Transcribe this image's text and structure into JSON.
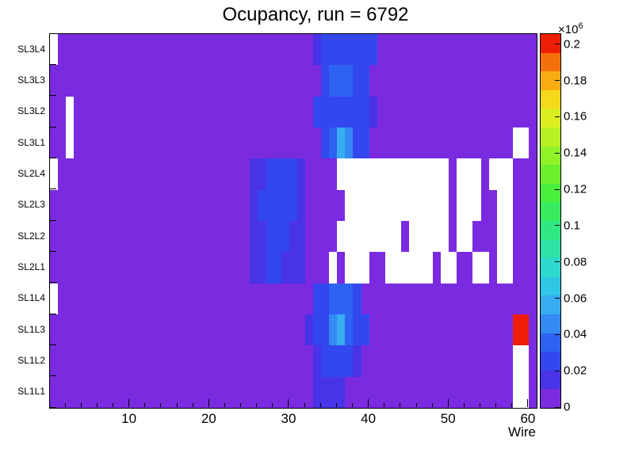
{
  "colorbar": {
    "exponent_base": "×10",
    "exponent_power": "6"
  },
  "chart_data": {
    "type": "heatmap",
    "title": "Ocupancy, run = 6792",
    "xlabel": "Wire",
    "x_range": [
      0,
      61
    ],
    "x_minor_tick_step": 2,
    "x_ticks": [
      {
        "value": 10,
        "label": "10"
      },
      {
        "value": 20,
        "label": "20"
      },
      {
        "value": 30,
        "label": "30"
      },
      {
        "value": 40,
        "label": "40"
      },
      {
        "value": 50,
        "label": "50"
      },
      {
        "value": 60,
        "label": "60"
      }
    ],
    "rows_top_to_bottom": [
      "SL3L4",
      "SL3L3",
      "SL3L2",
      "SL3L1",
      "SL2L4",
      "SL2L3",
      "SL2L2",
      "SL2L1",
      "SL1L4",
      "SL1L3",
      "SL1L2",
      "SL1L1"
    ],
    "values_scale": "×10^6",
    "zmax": 0.206,
    "z_ticks": [
      {
        "value": 0,
        "label": "0"
      },
      {
        "value": 0.02,
        "label": "0.02"
      },
      {
        "value": 0.04,
        "label": "0.04"
      },
      {
        "value": 0.06,
        "label": "0.06"
      },
      {
        "value": 0.08,
        "label": "0.08"
      },
      {
        "value": 0.1,
        "label": "0.1"
      },
      {
        "value": 0.12,
        "label": "0.12"
      },
      {
        "value": 0.14,
        "label": "0.14"
      },
      {
        "value": 0.16,
        "label": "0.16"
      },
      {
        "value": 0.18,
        "label": "0.18"
      },
      {
        "value": 0.2,
        "label": "0.2"
      }
    ],
    "palette": [
      "#7a2be0",
      "#4833e6",
      "#3347ee",
      "#2e62f2",
      "#3489f2",
      "#38acf0",
      "#30c6e6",
      "#2dd8cc",
      "#2ee2a8",
      "#30e882",
      "#38ec5e",
      "#4aee3c",
      "#6cf02e",
      "#92f228",
      "#b8f024",
      "#dcee20",
      "#f4da1a",
      "#f8ac12",
      "#f4700c",
      "#ee1e06"
    ],
    "empty_color": "#ffffff",
    "grid_encoding": "run-length pairs [occupancy_in_1e6_counts_or_null_for_empty, n_wire_bins] per row, 61 wire bins per row, rows ordered top to bottom",
    "grid_rle": [
      [
        [
          null,
          1
        ],
        [
          0.004,
          32
        ],
        [
          0.018,
          1
        ],
        [
          0.025,
          7
        ],
        [
          0.004,
          20
        ]
      ],
      [
        [
          0.004,
          34
        ],
        [
          0.025,
          1
        ],
        [
          0.032,
          3
        ],
        [
          0.025,
          2
        ],
        [
          0.004,
          21
        ]
      ],
      [
        [
          0.004,
          2
        ],
        [
          null,
          1
        ],
        [
          0.004,
          30
        ],
        [
          0.025,
          7
        ],
        [
          0.018,
          1
        ],
        [
          0.004,
          20
        ]
      ],
      [
        [
          0.004,
          2
        ],
        [
          null,
          1
        ],
        [
          0.004,
          31
        ],
        [
          0.025,
          1
        ],
        [
          0.032,
          1
        ],
        [
          0.055,
          1
        ],
        [
          0.045,
          1
        ],
        [
          0.025,
          2
        ],
        [
          0.004,
          18
        ],
        [
          null,
          2
        ],
        [
          0.004,
          1
        ]
      ],
      [
        [
          null,
          1
        ],
        [
          0.004,
          24
        ],
        [
          0.018,
          2
        ],
        [
          0.025,
          4
        ],
        [
          0.018,
          1
        ],
        [
          0.004,
          4
        ],
        [
          null,
          14
        ],
        [
          0.004,
          1
        ],
        [
          null,
          3
        ],
        [
          0.004,
          1
        ],
        [
          null,
          3
        ],
        [
          0.004,
          3
        ]
      ],
      [
        [
          0.004,
          25
        ],
        [
          0.018,
          1
        ],
        [
          0.025,
          5
        ],
        [
          0.018,
          1
        ],
        [
          0.004,
          5
        ],
        [
          null,
          13
        ],
        [
          0.004,
          1
        ],
        [
          null,
          3
        ],
        [
          0.004,
          2
        ],
        [
          null,
          2
        ],
        [
          0.004,
          3
        ]
      ],
      [
        [
          0.004,
          25
        ],
        [
          0.018,
          2
        ],
        [
          0.025,
          3
        ],
        [
          0.018,
          2
        ],
        [
          0.004,
          4
        ],
        [
          null,
          8
        ],
        [
          0.004,
          1
        ],
        [
          null,
          5
        ],
        [
          0.004,
          1
        ],
        [
          null,
          2
        ],
        [
          0.004,
          3
        ],
        [
          null,
          2
        ],
        [
          0.004,
          3
        ]
      ],
      [
        [
          0.004,
          25
        ],
        [
          0.018,
          2
        ],
        [
          0.025,
          2
        ],
        [
          0.018,
          3
        ],
        [
          0.004,
          3
        ],
        [
          null,
          1
        ],
        [
          0.004,
          1
        ],
        [
          null,
          3
        ],
        [
          0.004,
          2
        ],
        [
          null,
          6
        ],
        [
          0.004,
          1
        ],
        [
          null,
          2
        ],
        [
          0.004,
          2
        ],
        [
          null,
          2
        ],
        [
          0.004,
          1
        ],
        [
          null,
          2
        ],
        [
          0.004,
          3
        ]
      ],
      [
        [
          null,
          1
        ],
        [
          0.004,
          32
        ],
        [
          0.025,
          2
        ],
        [
          0.032,
          3
        ],
        [
          0.025,
          1
        ],
        [
          0.004,
          22
        ]
      ],
      [
        [
          0.004,
          32
        ],
        [
          0.018,
          1
        ],
        [
          0.025,
          2
        ],
        [
          0.045,
          1
        ],
        [
          0.055,
          1
        ],
        [
          0.032,
          1
        ],
        [
          0.025,
          2
        ],
        [
          0.004,
          18
        ],
        [
          0.2,
          2
        ],
        [
          0.004,
          1
        ]
      ],
      [
        [
          0.004,
          33
        ],
        [
          0.018,
          1
        ],
        [
          0.025,
          4
        ],
        [
          0.018,
          1
        ],
        [
          0.004,
          19
        ],
        [
          null,
          2
        ],
        [
          0.004,
          1
        ]
      ],
      [
        [
          0.004,
          33
        ],
        [
          0.018,
          4
        ],
        [
          0.004,
          21
        ],
        [
          null,
          2
        ],
        [
          0.004,
          1
        ]
      ]
    ]
  }
}
